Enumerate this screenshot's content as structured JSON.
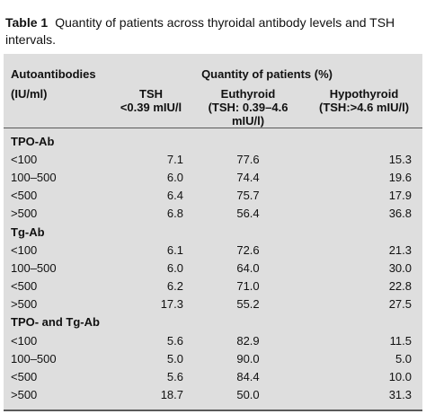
{
  "caption": {
    "label": "Table 1",
    "text": "Quantity of patients across thyroidal antibody levels and TSH intervals."
  },
  "header": {
    "col1_line1": "Autoantibodies",
    "col1_line2": "(IU/ml)",
    "span_title": "Quantity of patients (%)",
    "tsh_line1": "TSH",
    "tsh_line2": "<0.39 mIU/l",
    "eu_line1": "Euthyroid",
    "eu_line2": "(TSH: 0.39–4.6 mIU/l)",
    "hypo_line1": "Hypothyroid",
    "hypo_line2": "(TSH:>4.6 mIU/l)"
  },
  "groups": [
    {
      "name": "TPO-Ab",
      "rows": [
        {
          "range": "<100",
          "tsh": "7.1",
          "euthyroid": "77.6",
          "hypothyroid": "15.3"
        },
        {
          "range": "100–500",
          "tsh": "6.0",
          "euthyroid": "74.4",
          "hypothyroid": "19.6"
        },
        {
          "range": "<500",
          "tsh": "6.4",
          "euthyroid": "75.7",
          "hypothyroid": "17.9"
        },
        {
          "range": ">500",
          "tsh": "6.8",
          "euthyroid": "56.4",
          "hypothyroid": "36.8"
        }
      ]
    },
    {
      "name": "Tg-Ab",
      "rows": [
        {
          "range": "<100",
          "tsh": "6.1",
          "euthyroid": "72.6",
          "hypothyroid": "21.3"
        },
        {
          "range": "100–500",
          "tsh": "6.0",
          "euthyroid": "64.0",
          "hypothyroid": "30.0"
        },
        {
          "range": "<500",
          "tsh": "6.2",
          "euthyroid": "71.0",
          "hypothyroid": "22.8"
        },
        {
          "range": ">500",
          "tsh": "17.3",
          "euthyroid": "55.2",
          "hypothyroid": "27.5"
        }
      ]
    },
    {
      "name": "TPO- and Tg-Ab",
      "rows": [
        {
          "range": "<100",
          "tsh": "5.6",
          "euthyroid": "82.9",
          "hypothyroid": "11.5"
        },
        {
          "range": "100–500",
          "tsh": "5.0",
          "euthyroid": "90.0",
          "hypothyroid": "5.0"
        },
        {
          "range": "<500",
          "tsh": "5.6",
          "euthyroid": "84.4",
          "hypothyroid": "10.0"
        },
        {
          "range": ">500",
          "tsh": "18.7",
          "euthyroid": "50.0",
          "hypothyroid": "31.3"
        }
      ]
    }
  ]
}
